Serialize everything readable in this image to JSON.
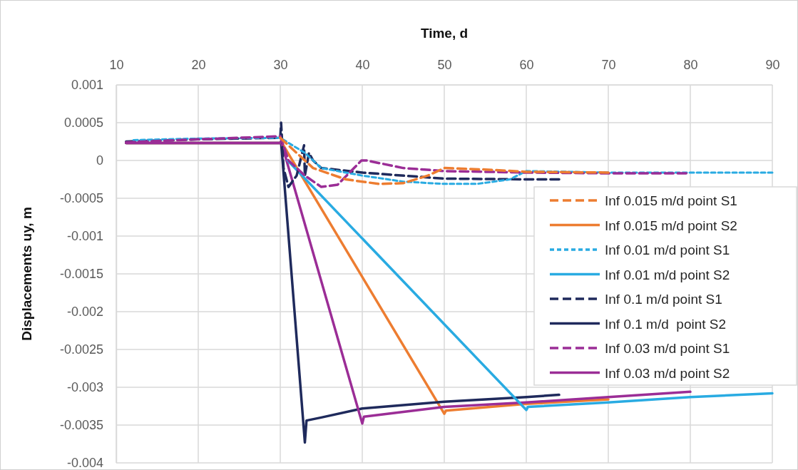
{
  "chart_data": {
    "type": "line",
    "xlabel": "Time, d",
    "ylabel": "Displacements uy, m",
    "xlim": [
      10,
      90
    ],
    "xticks": [
      10,
      20,
      30,
      40,
      50,
      60,
      70,
      80,
      90
    ],
    "ylim": [
      -0.004,
      0.001
    ],
    "yticks": [
      -0.004,
      -0.0035,
      -0.003,
      -0.0025,
      -0.002,
      -0.0015,
      -0.001,
      -0.0005,
      0,
      0.0005,
      0.001
    ],
    "grid": true,
    "legend": "right",
    "marker": "none",
    "series": [
      {
        "name": "Inf 0.015 m/d point S1",
        "color": "#ed7d31",
        "line_style": "dashed",
        "x": [
          30,
          32,
          34,
          38,
          42,
          45,
          48,
          50,
          55,
          60,
          70
        ],
        "values": [
          0.0003,
          0.0001,
          -0.0001,
          -0.00025,
          -0.00031,
          -0.0003,
          -0.0002,
          -0.0001,
          -0.00012,
          -0.00015,
          -0.00016
        ]
      },
      {
        "name": "Inf 0.015 m/d point S2",
        "color": "#ed7d31",
        "line_style": "solid",
        "x": [
          11.2,
          30,
          30.1,
          50,
          50.2,
          60,
          70
        ],
        "values": [
          0.00023,
          0.00023,
          0.00025,
          -0.00335,
          -0.00331,
          -0.00322,
          -0.00316
        ]
      },
      {
        "name": "Inf 0.01 m/d point S1",
        "color": "#29abe2",
        "line_style": "dotted",
        "x": [
          12.1,
          20,
          30,
          33,
          35,
          40,
          45,
          50,
          54,
          58,
          60,
          65,
          70,
          80,
          90
        ],
        "values": [
          0.00027,
          0.00029,
          0.0003,
          0.0001,
          -0.0001,
          -0.0002,
          -0.00028,
          -0.00031,
          -0.00031,
          -0.00025,
          -0.00014,
          -0.00015,
          -0.00016,
          -0.00016,
          -0.00016
        ]
      },
      {
        "name": "Inf 0.01 m/d point S2",
        "color": "#29abe2",
        "line_style": "solid",
        "x": [
          30.9,
          60,
          60.2,
          70,
          80,
          90
        ],
        "values": [
          0,
          -0.0033,
          -0.00326,
          -0.0032,
          -0.00313,
          -0.00308
        ]
      },
      {
        "name": "Inf 0.1 m/d point S1",
        "color": "#1f2a5c",
        "line_style": "dashed",
        "x": [
          11.2,
          20,
          30,
          30.1,
          30.4,
          31,
          32,
          32.9,
          33,
          33.5,
          34,
          35,
          40,
          50,
          60,
          64
        ],
        "values": [
          0.00025,
          0.00028,
          0.0003,
          0.0005,
          -0.0001,
          -0.00035,
          -0.0002,
          0.0002,
          -0.0002,
          0.0001,
          0,
          -0.0001,
          -0.00016,
          -0.00024,
          -0.00025,
          -0.00025
        ]
      },
      {
        "name": "Inf 0.1 m/d  point S2",
        "color": "#1f2a5c",
        "line_style": "solid",
        "x": [
          11.2,
          30,
          30.1,
          33,
          33.2,
          35,
          40,
          50,
          60,
          64
        ],
        "values": [
          0.00023,
          0.00023,
          0.00025,
          -0.00373,
          -0.00344,
          -0.0034,
          -0.00328,
          -0.00319,
          -0.00313,
          -0.0031
        ]
      },
      {
        "name": "Inf 0.03 m/d point S1",
        "color": "#9b2d96",
        "line_style": "dashed",
        "x": [
          11.2,
          20,
          30,
          31,
          33,
          35,
          37,
          39,
          39.9,
          40.5,
          45,
          50,
          60,
          70,
          79.5
        ],
        "values": [
          0.00024,
          0.00028,
          0.00032,
          0,
          -0.0002,
          -0.00035,
          -0.00032,
          -0.0001,
          0,
          0,
          -0.0001,
          -0.00014,
          -0.00016,
          -0.00017,
          -0.00017
        ]
      },
      {
        "name": "Inf 0.03 m/d point S2",
        "color": "#9b2d96",
        "line_style": "solid",
        "x": [
          11.2,
          30,
          30.1,
          40,
          40.2,
          50,
          60,
          70,
          80
        ],
        "values": [
          0.00023,
          0.00023,
          0.00025,
          -0.00348,
          -0.00339,
          -0.00326,
          -0.0032,
          -0.00313,
          -0.00306
        ]
      }
    ]
  }
}
